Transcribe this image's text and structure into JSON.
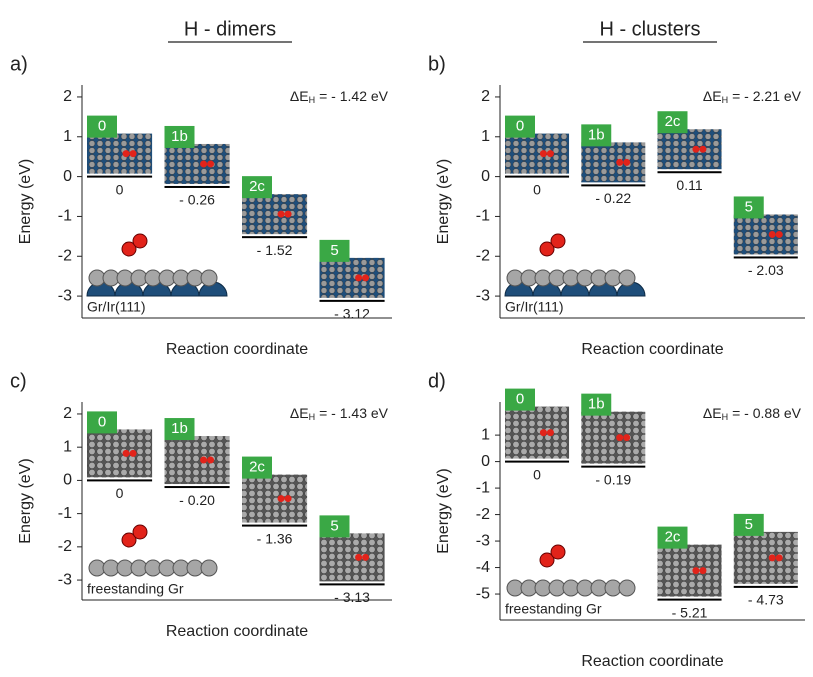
{
  "columns": [
    "H - dimers",
    "H - clusters"
  ],
  "chart_data": [
    {
      "type": "level",
      "panel": "a)",
      "annotation": {
        "symbol": "ΔE",
        "subscript": "H",
        "text": "= - 1.42 eV"
      },
      "ylabel": "Energy (eV)",
      "xlabel": "Reaction coordinate",
      "substrate": "Gr/Ir(111)",
      "categories": [
        "0",
        "1b",
        "2c",
        "5"
      ],
      "values": [
        0,
        -0.26,
        -1.52,
        -3.12
      ],
      "value_labels": [
        "0",
        "- 0.26",
        "- 1.52",
        "- 3.12"
      ],
      "ylim": [
        -3.55,
        2.3
      ],
      "yticks": [
        -3,
        -2,
        -1,
        0,
        1,
        2
      ],
      "color": "#000000",
      "label_color": "#3aa845"
    },
    {
      "type": "level",
      "panel": "b)",
      "annotation": {
        "symbol": "ΔE",
        "subscript": "H",
        "text": "= - 2.21 eV"
      },
      "ylabel": "Energy (eV)",
      "xlabel": "Reaction coordinate",
      "substrate": "Gr/Ir(111)",
      "categories": [
        "0",
        "1b",
        "2c",
        "5"
      ],
      "values": [
        0,
        -0.22,
        0.11,
        -2.03
      ],
      "value_labels": [
        "0",
        "- 0.22",
        "0.11",
        "- 2.03"
      ],
      "ylim": [
        -3.55,
        2.3
      ],
      "yticks": [
        -3,
        -2,
        -1,
        0,
        1,
        2
      ],
      "color": "#000000",
      "label_color": "#3aa845"
    },
    {
      "type": "level",
      "panel": "c)",
      "annotation": {
        "symbol": "ΔE",
        "subscript": "H",
        "text": "= - 1.43 eV"
      },
      "ylabel": "Energy (eV)",
      "xlabel": "Reaction coordinate",
      "substrate": "freestanding Gr",
      "categories": [
        "0",
        "1b",
        "2c",
        "5"
      ],
      "values": [
        0,
        -0.2,
        -1.36,
        -3.13
      ],
      "value_labels": [
        "0",
        "- 0.20",
        "- 1.36",
        "- 3.13"
      ],
      "ylim": [
        -3.6,
        2.36
      ],
      "yticks": [
        -3,
        -2,
        -1,
        0,
        1,
        2
      ],
      "color": "#000000",
      "label_color": "#3aa845"
    },
    {
      "type": "level",
      "panel": "d)",
      "annotation": {
        "symbol": "ΔE",
        "subscript": "H",
        "text": "= - 0.88 eV"
      },
      "ylabel": "Energy (eV)",
      "xlabel": "Reaction coordinate",
      "substrate": "freestanding Gr",
      "categories": [
        "0",
        "1b",
        "2c",
        "5"
      ],
      "values": [
        0,
        -0.19,
        -5.21,
        -4.73
      ],
      "value_labels": [
        "0",
        "- 0.19",
        "- 5.21",
        "- 4.73"
      ],
      "ylim": [
        -5.98,
        2.25
      ],
      "yticks": [
        -5,
        -4,
        -3,
        -2,
        -1,
        0,
        1
      ],
      "color": "#000000",
      "label_color": "#3aa845"
    }
  ]
}
